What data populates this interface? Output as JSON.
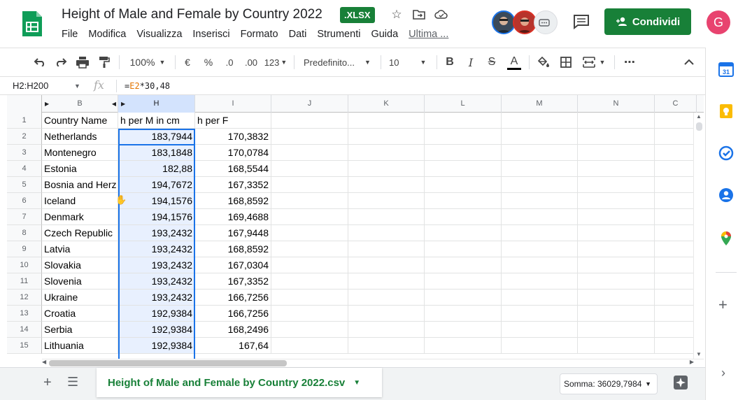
{
  "app": {
    "title": "Height of Male and Female by Country 2022",
    "file_badge": ".XLSX",
    "menu": [
      "File",
      "Modifica",
      "Visualizza",
      "Inserisci",
      "Formato",
      "Dati",
      "Strumenti",
      "Guida"
    ],
    "last_edit": "Ultima ...",
    "share_label": "Condividi",
    "account_initial": "G",
    "accent_color": "#188038"
  },
  "toolbar": {
    "zoom": "100%",
    "currency": "€",
    "percent": "%",
    "decrease_decimal": ".0",
    "increase_decimal": ".00",
    "more_formats": "123",
    "font": "Predefinito...",
    "font_size": "10",
    "bold": "B",
    "italic": "I",
    "strike": "S",
    "text_color": "A",
    "more": "⋯"
  },
  "formula_bar": {
    "name_box": "H2:H200",
    "fx": "fx",
    "formula_prefix": "=",
    "formula_ref": "E2",
    "formula_rest": "*30,48"
  },
  "grid": {
    "columns": [
      {
        "label": "B",
        "selected": false
      },
      {
        "label": "H",
        "selected": true
      },
      {
        "label": "I",
        "selected": false
      },
      {
        "label": "J",
        "selected": false
      },
      {
        "label": "K",
        "selected": false
      },
      {
        "label": "L",
        "selected": false
      },
      {
        "label": "M",
        "selected": false
      },
      {
        "label": "N",
        "selected": false
      },
      {
        "label": "C",
        "selected": false
      }
    ],
    "rows": [
      {
        "n": "1",
        "country": "Country Name",
        "m": "h per M in cm",
        "f": "h per F"
      },
      {
        "n": "2",
        "country": "Netherlands",
        "m": "183,7944",
        "f": "170,3832"
      },
      {
        "n": "3",
        "country": "Montenegro",
        "m": "183,1848",
        "f": "170,0784"
      },
      {
        "n": "4",
        "country": "Estonia",
        "m": "182,88",
        "f": "168,5544"
      },
      {
        "n": "5",
        "country": "Bosnia and Herz",
        "m": "194,7672",
        "f": "167,3352"
      },
      {
        "n": "6",
        "country": "Iceland",
        "m": "194,1576",
        "f": "168,8592"
      },
      {
        "n": "7",
        "country": "Denmark",
        "m": "194,1576",
        "f": "169,4688"
      },
      {
        "n": "8",
        "country": "Czech Republic",
        "m": "193,2432",
        "f": "167,9448"
      },
      {
        "n": "9",
        "country": "Latvia",
        "m": "193,2432",
        "f": "168,8592"
      },
      {
        "n": "10",
        "country": "Slovakia",
        "m": "193,2432",
        "f": "167,0304"
      },
      {
        "n": "11",
        "country": "Slovenia",
        "m": "193,2432",
        "f": "167,3352"
      },
      {
        "n": "12",
        "country": "Ukraine",
        "m": "193,2432",
        "f": "166,7256"
      },
      {
        "n": "13",
        "country": "Croatia",
        "m": "192,9384",
        "f": "166,7256"
      },
      {
        "n": "14",
        "country": "Serbia",
        "m": "192,9384",
        "f": "168,2496"
      },
      {
        "n": "15",
        "country": "Lithuania",
        "m": "192,9384",
        "f": "167,64"
      }
    ]
  },
  "sheet_bar": {
    "tab_label": "Height of Male and Female by Country 2022.csv",
    "sum_label": "Somma: 36029,7984"
  }
}
